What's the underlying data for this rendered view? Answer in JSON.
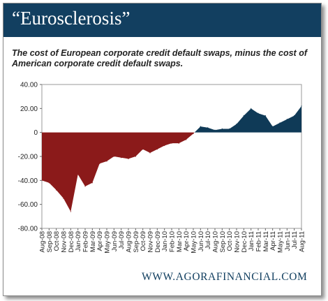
{
  "header": {
    "title": "“Eurosclerosis”"
  },
  "subtitle": "The cost of European corporate credit default swaps, minus the cost of American corporate credit default swaps.",
  "footer": {
    "source": "WWW.AGORAFINANCIAL.COM"
  },
  "colors": {
    "header_bg": "#123f60",
    "negative": "#8b1a1a",
    "positive": "#0f3a57",
    "text": "#222222"
  },
  "chart_data": {
    "type": "area",
    "title": "",
    "xlabel": "",
    "ylabel": "",
    "ylim": [
      -80,
      40
    ],
    "yticks": [
      "40.00",
      "20.00",
      "0",
      "-20.00",
      "-40.00",
      "-60.00",
      "-80.00"
    ],
    "ytick_values": [
      40,
      20,
      0,
      -20,
      -40,
      -60,
      -80
    ],
    "grid": false,
    "categories": [
      "Aug-08",
      "Sep-08",
      "Oct-08",
      "Nov-08",
      "Dec-08",
      "Jan-09",
      "Feb-09",
      "Mar-09",
      "Apr-09",
      "May-09",
      "Jun-09",
      "Jul-09",
      "Aug-09",
      "Sep-09",
      "Oct-09",
      "Nov-09",
      "Dec-09",
      "Jan-10",
      "Feb-10",
      "Mar-10",
      "Apr-10",
      "May-10",
      "Jun-10",
      "Jul-10",
      "Aug-10",
      "Sep-10",
      "Oct-10",
      "Nov-10",
      "Dec-10",
      "Jan-11",
      "Feb-11",
      "Mar-11",
      "Apr-11",
      "May-11",
      "Jun-11",
      "Jul-11",
      "Aug-11"
    ],
    "series": [
      {
        "values": [
          -40,
          -42,
          -48,
          -55,
          -66,
          -35,
          -45,
          -42,
          -26,
          -24,
          -20,
          -21,
          -22,
          -20,
          -14,
          -17,
          -14,
          -11,
          -9,
          -9,
          -6,
          -1,
          5,
          4,
          2,
          3,
          3,
          7,
          14,
          20,
          16,
          14,
          5,
          8,
          11,
          14,
          22
        ]
      }
    ]
  }
}
